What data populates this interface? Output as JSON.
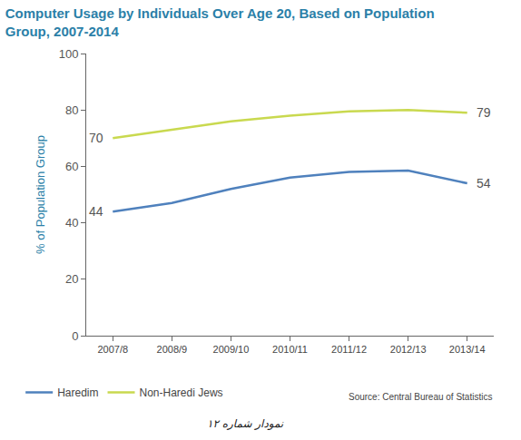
{
  "chart_data": {
    "type": "line",
    "title": "Computer Usage by Individuals Over Age 20, Based on Population Group, 2007-2014",
    "y_label": "% of Population Group",
    "categories": [
      "2007/8",
      "2008/9",
      "2009/10",
      "2010/11",
      "2011/12",
      "2012/13",
      "2013/14"
    ],
    "series": [
      {
        "name": "Haredim",
        "color": "#4f81bd",
        "values": [
          44,
          47,
          52,
          56,
          58,
          58.5,
          54
        ]
      },
      {
        "name": "Non-Haredi Jews",
        "color": "#c9d94f",
        "values": [
          70,
          73,
          76,
          78,
          79.5,
          80,
          79
        ]
      }
    ],
    "ylim": [
      0,
      100
    ],
    "yticks": [
      0,
      20,
      40,
      60,
      80,
      100
    ],
    "grid": false,
    "legend": "bottom left",
    "annotations": [
      {
        "text": "44",
        "category": "2007/8",
        "value": 44
      },
      {
        "text": "54",
        "category": "2013/14",
        "value": 54
      },
      {
        "text": "70",
        "category": "2007/8",
        "value": 70
      },
      {
        "text": "79",
        "category": "2013/14",
        "value": 79
      }
    ],
    "source": "Source: Central Bureau of Statistics",
    "caption": "نمودار شماره ۱۲"
  }
}
